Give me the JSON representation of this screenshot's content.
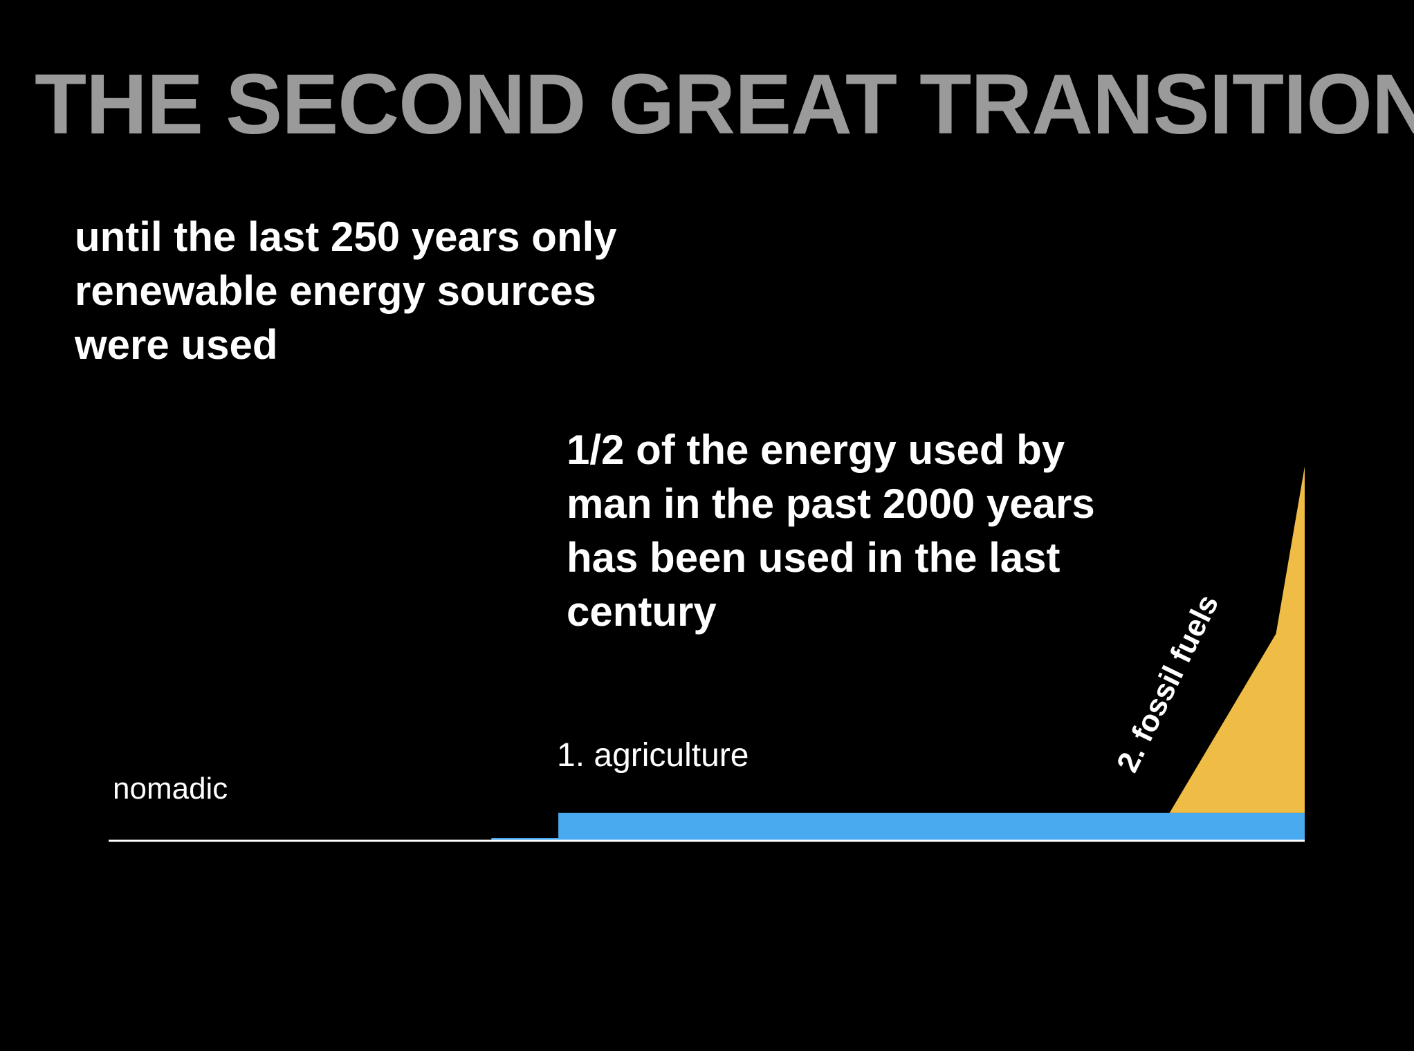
{
  "slide": {
    "title": "THE SECOND GREAT TRANSITION"
  },
  "callouts": {
    "renewable": [
      "until the last 250 years only",
      "renewable energy sources",
      "were used"
    ],
    "half_energy": [
      "1/2 of the energy used by",
      "man in the past 2000 years",
      "has been used in the last",
      "century"
    ]
  },
  "colors": {
    "background": "#000000",
    "title": "#9a9a9a",
    "text": "#ffffff",
    "renewable_area": "#4aaaf0",
    "fossil_area": "#efbd45",
    "baseline": "#ffffff"
  },
  "chart_data": {
    "type": "area",
    "title": "",
    "xlabel": "",
    "ylabel": "",
    "grid": false,
    "phase_labels": [
      "nomadic",
      "1. agriculture",
      "2. fossil fuels"
    ],
    "series": [
      {
        "color": "#4aaaf0",
        "points": [
          [
            0.32,
            0
          ],
          [
            0.32,
            0.007
          ],
          [
            0.376,
            0.007
          ],
          [
            0.376,
            0.07
          ],
          [
            1.0,
            0.07
          ],
          [
            1.0,
            0
          ]
        ]
      },
      {
        "color": "#efbd45",
        "points": [
          [
            0.887,
            0.07
          ],
          [
            0.976,
            0.52
          ],
          [
            1.0,
            0.94
          ],
          [
            1.0,
            0.07
          ]
        ]
      }
    ],
    "xlim": [
      0,
      1
    ],
    "ylim": [
      0,
      1
    ]
  }
}
